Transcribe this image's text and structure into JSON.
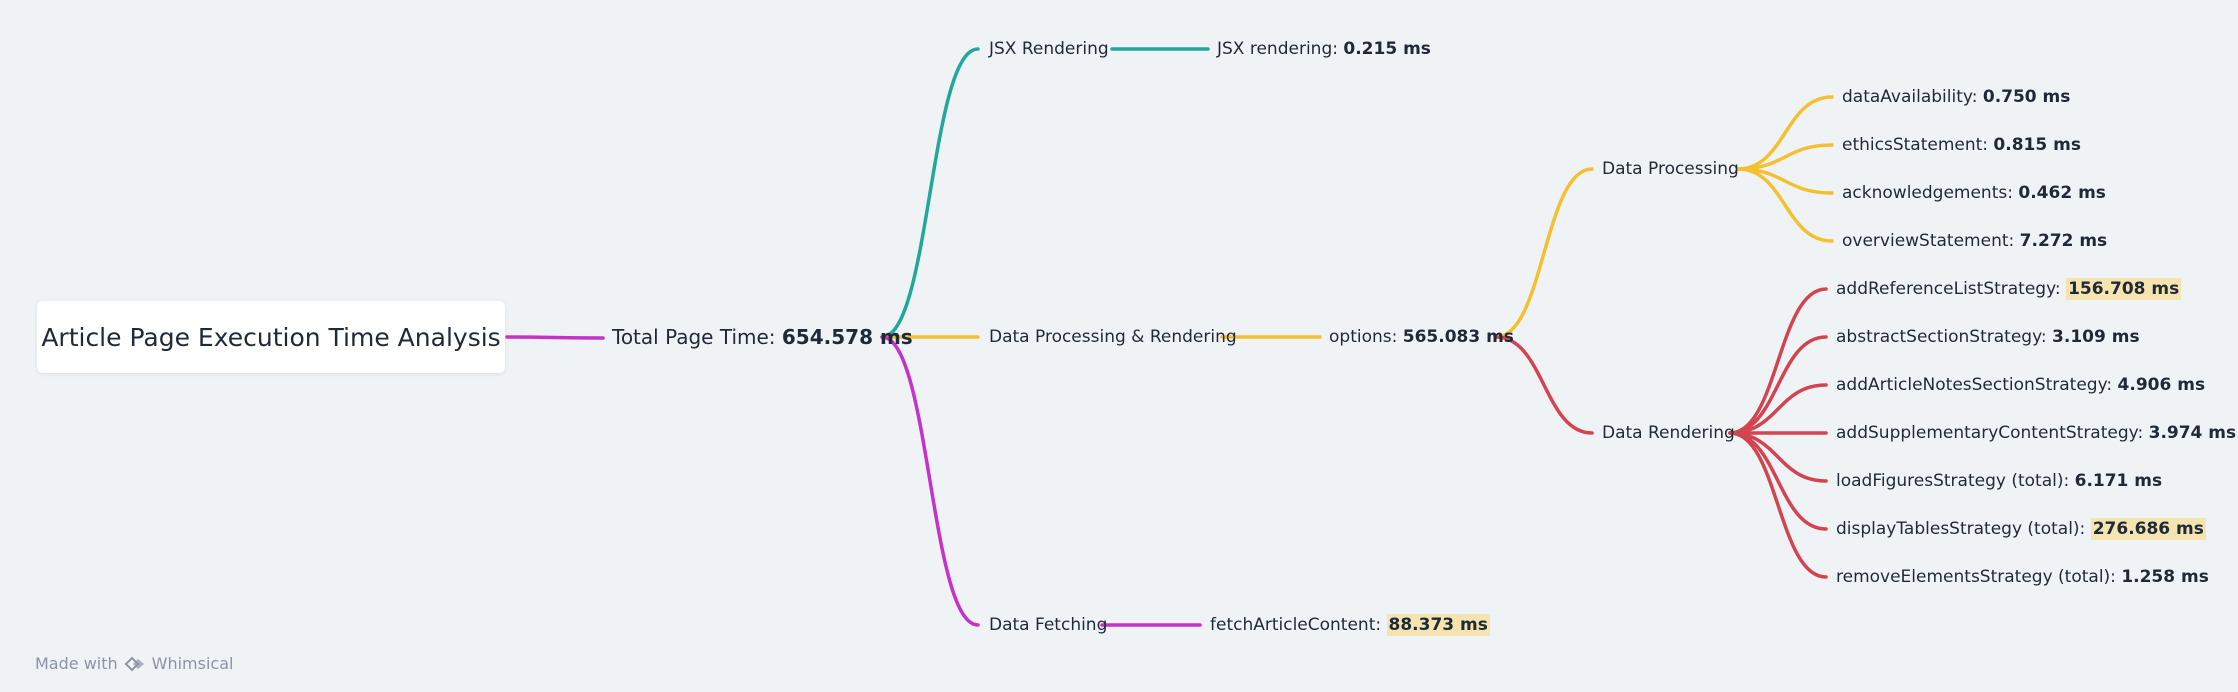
{
  "colors": {
    "teal": "#20a99a",
    "yellow": "#f4c030",
    "magenta": "#c532c8",
    "red": "#d2444f",
    "highlight": "#f5e3b0"
  },
  "root": {
    "label": "Article Page Execution Time Analysis"
  },
  "total": {
    "label": "Total Page Time:",
    "value": "654.578 ms"
  },
  "jsx": {
    "label": "JSX Rendering",
    "child": {
      "label": "JSX rendering:",
      "value": "0.215 ms"
    }
  },
  "dpr": {
    "label": "Data Processing & Rendering",
    "options": {
      "label": "options:",
      "value": "565.083 ms"
    }
  },
  "processing": {
    "label": "Data Processing",
    "items": [
      {
        "label": "dataAvailability:",
        "value": "0.750 ms",
        "highlight": false
      },
      {
        "label": "ethicsStatement:",
        "value": "0.815 ms",
        "highlight": false
      },
      {
        "label": "acknowledgements:",
        "value": "0.462 ms",
        "highlight": false
      },
      {
        "label": "overviewStatement:",
        "value": "7.272 ms",
        "highlight": false
      }
    ]
  },
  "rendering": {
    "label": "Data Rendering",
    "items": [
      {
        "label": "addReferenceListStrategy:",
        "value": "156.708 ms",
        "highlight": true
      },
      {
        "label": "abstractSectionStrategy:",
        "value": "3.109 ms",
        "highlight": false
      },
      {
        "label": "addArticleNotesSectionStrategy:",
        "value": "4.906 ms",
        "highlight": false
      },
      {
        "label": "addSupplementaryContentStrategy:",
        "value": "3.974 ms",
        "highlight": false
      },
      {
        "label": "loadFiguresStrategy (total):",
        "value": "6.171 ms",
        "highlight": false
      },
      {
        "label": "displayTablesStrategy (total):",
        "value": "276.686 ms",
        "highlight": true
      },
      {
        "label": "removeElementsStrategy (total):",
        "value": "1.258 ms",
        "highlight": false
      }
    ]
  },
  "fetching": {
    "label": "Data Fetching",
    "child": {
      "label": "fetchArticleContent:",
      "value": "88.373 ms",
      "highlight": true
    }
  },
  "footer": {
    "prefix": "Made with",
    "brand": "Whimsical"
  }
}
